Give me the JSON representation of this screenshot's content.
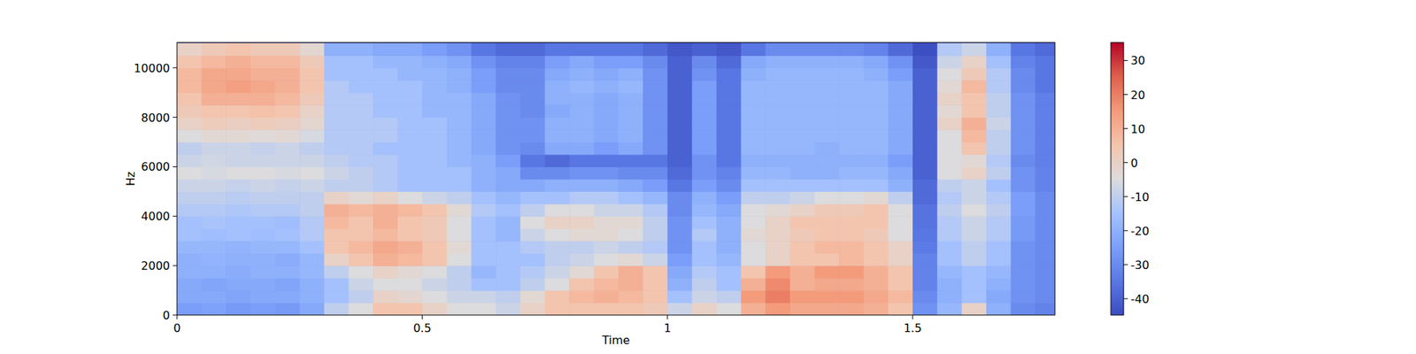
{
  "chart_data": {
    "type": "heatmap",
    "x_label": "Time",
    "y_label": "Hz",
    "xlim": [
      0,
      1.79
    ],
    "ylim": [
      0,
      11025
    ],
    "xticks": [
      0,
      0.5,
      1,
      1.5
    ],
    "yticks": [
      0,
      2000,
      4000,
      6000,
      8000,
      10000
    ],
    "x": [
      0.025,
      0.075,
      0.125,
      0.175,
      0.225,
      0.275,
      0.325,
      0.375,
      0.425,
      0.475,
      0.525,
      0.575,
      0.625,
      0.675,
      0.725,
      0.775,
      0.825,
      0.875,
      0.925,
      0.975,
      1.025,
      1.075,
      1.125,
      1.175,
      1.225,
      1.275,
      1.325,
      1.375,
      1.425,
      1.475,
      1.525,
      1.575,
      1.625,
      1.675,
      1.725,
      1.775
    ],
    "y": [
      250,
      750,
      1250,
      1750,
      2250,
      2750,
      3250,
      3750,
      4250,
      4750,
      5250,
      5750,
      6250,
      6750,
      7250,
      7750,
      8250,
      8750,
      9250,
      9750,
      10250,
      10750
    ],
    "cells": [
      [
        -25,
        -24,
        -26,
        -25,
        -26,
        -22,
        -10,
        -5,
        5,
        5,
        0,
        -5,
        -5,
        -8,
        0,
        5,
        5,
        5,
        5,
        3,
        -8,
        0,
        -5,
        10,
        15,
        12,
        12,
        12,
        10,
        5,
        -28,
        -18,
        0,
        -20,
        -30,
        -32
      ],
      [
        -22,
        -22,
        -23,
        -22,
        -22,
        -20,
        -15,
        -10,
        0,
        -2,
        -5,
        -8,
        -8,
        -10,
        -3,
        5,
        8,
        10,
        8,
        5,
        -15,
        -8,
        -10,
        15,
        20,
        15,
        15,
        15,
        12,
        8,
        -30,
        -20,
        -15,
        -22,
        -28,
        -30
      ],
      [
        -22,
        -23,
        -22,
        -22,
        -23,
        -20,
        -15,
        -8,
        -5,
        -5,
        -8,
        -10,
        -15,
        -15,
        -10,
        -5,
        5,
        8,
        10,
        5,
        -20,
        -10,
        -15,
        10,
        18,
        10,
        12,
        12,
        10,
        5,
        -32,
        -20,
        -15,
        -20,
        -28,
        -30
      ],
      [
        -20,
        -20,
        -21,
        -20,
        -20,
        -18,
        -10,
        -5,
        0,
        -3,
        -5,
        -10,
        -18,
        -15,
        -12,
        -8,
        -3,
        5,
        10,
        5,
        -22,
        -12,
        -15,
        5,
        15,
        10,
        15,
        15,
        10,
        5,
        -32,
        -18,
        -15,
        -18,
        -28,
        -30
      ],
      [
        -20,
        -19,
        -20,
        -20,
        -21,
        -18,
        0,
        5,
        10,
        8,
        5,
        -5,
        -15,
        -15,
        -15,
        -10,
        -8,
        -5,
        -3,
        -8,
        -25,
        -15,
        -18,
        -5,
        0,
        5,
        5,
        8,
        5,
        0,
        -32,
        -15,
        -10,
        -15,
        -28,
        -30
      ],
      [
        -18,
        -18,
        -19,
        -18,
        -18,
        -15,
        5,
        8,
        12,
        10,
        5,
        -3,
        -15,
        -15,
        -12,
        -10,
        -10,
        -8,
        -10,
        -12,
        -28,
        -15,
        -20,
        -5,
        0,
        5,
        8,
        8,
        5,
        0,
        -34,
        -15,
        -10,
        -15,
        -28,
        -30
      ],
      [
        -15,
        -16,
        -15,
        -16,
        -15,
        -12,
        5,
        5,
        8,
        5,
        3,
        -5,
        -15,
        -18,
        -8,
        -5,
        -3,
        -3,
        -5,
        -10,
        -28,
        -12,
        -20,
        -3,
        0,
        3,
        5,
        5,
        3,
        -5,
        -35,
        -12,
        -8,
        -12,
        -26,
        -30
      ],
      [
        -15,
        -14,
        -15,
        -15,
        -16,
        -12,
        8,
        5,
        10,
        5,
        3,
        -5,
        -15,
        -18,
        -5,
        0,
        0,
        -3,
        -3,
        -10,
        -28,
        -15,
        -20,
        -5,
        0,
        5,
        5,
        5,
        5,
        -5,
        -36,
        -12,
        -8,
        -12,
        -26,
        -30
      ],
      [
        -12,
        -12,
        -13,
        -12,
        -12,
        -10,
        10,
        8,
        10,
        8,
        5,
        -3,
        -12,
        -15,
        -10,
        -5,
        -5,
        -8,
        -8,
        -12,
        -30,
        -18,
        -22,
        -5,
        -3,
        0,
        3,
        3,
        5,
        -5,
        -36,
        -10,
        -5,
        -10,
        -25,
        -30
      ],
      [
        -10,
        -10,
        -11,
        -10,
        -10,
        -10,
        0,
        -3,
        0,
        -5,
        -8,
        -10,
        -15,
        -18,
        -15,
        -15,
        -12,
        -12,
        -15,
        -18,
        -30,
        -20,
        -25,
        -10,
        -10,
        -8,
        -5,
        -5,
        -3,
        -10,
        -38,
        -12,
        -8,
        -12,
        -25,
        -30
      ],
      [
        -8,
        -8,
        -9,
        -8,
        -9,
        -8,
        -10,
        -10,
        -12,
        -15,
        -15,
        -15,
        -20,
        -22,
        -22,
        -20,
        -20,
        -20,
        -22,
        -25,
        -35,
        -25,
        -30,
        -15,
        -15,
        -15,
        -15,
        -15,
        -15,
        -20,
        -38,
        -10,
        -8,
        -15,
        -28,
        -32
      ],
      [
        -5,
        -6,
        -5,
        -5,
        -6,
        -5,
        -8,
        -10,
        -12,
        -15,
        -15,
        -15,
        -20,
        -22,
        -30,
        -30,
        -28,
        -28,
        -30,
        -30,
        -38,
        -28,
        -32,
        -18,
        -18,
        -20,
        -20,
        -18,
        -18,
        -22,
        -40,
        -5,
        0,
        -10,
        -28,
        -32
      ],
      [
        -8,
        -7,
        -8,
        -8,
        -8,
        -8,
        -10,
        -12,
        -12,
        -15,
        -15,
        -18,
        -20,
        -25,
        -35,
        -38,
        -35,
        -35,
        -35,
        -35,
        -40,
        -28,
        -35,
        -20,
        -20,
        -20,
        -20,
        -20,
        -20,
        -25,
        -40,
        -5,
        -3,
        -12,
        -30,
        -33
      ],
      [
        -10,
        -8,
        -8,
        -9,
        -8,
        -10,
        -12,
        -12,
        -15,
        -15,
        -15,
        -18,
        -22,
        -28,
        -30,
        -22,
        -22,
        -25,
        -22,
        -28,
        -40,
        -25,
        -35,
        -18,
        -18,
        -18,
        -20,
        -18,
        -18,
        -22,
        -40,
        -5,
        5,
        -10,
        -28,
        -33
      ],
      [
        -5,
        -3,
        -3,
        -4,
        -3,
        -6,
        -12,
        -12,
        -12,
        -15,
        -15,
        -18,
        -22,
        -28,
        -28,
        -20,
        -20,
        -22,
        -20,
        -28,
        -40,
        -25,
        -35,
        -18,
        -18,
        -18,
        -18,
        -18,
        -18,
        -22,
        -40,
        -5,
        8,
        -10,
        -28,
        -33
      ],
      [
        0,
        2,
        1,
        2,
        1,
        -2,
        -12,
        -12,
        -12,
        -15,
        -15,
        -18,
        -22,
        -28,
        -28,
        -20,
        -20,
        -22,
        -20,
        -28,
        -40,
        -25,
        -35,
        -18,
        -18,
        -18,
        -18,
        -18,
        -18,
        -22,
        -40,
        0,
        10,
        -8,
        -28,
        -33
      ],
      [
        3,
        5,
        5,
        6,
        5,
        0,
        -12,
        -12,
        -15,
        -15,
        -18,
        -18,
        -22,
        -28,
        -30,
        -22,
        -20,
        -22,
        -20,
        -28,
        -40,
        -25,
        -35,
        -18,
        -18,
        -18,
        -18,
        -18,
        -18,
        -22,
        -40,
        -3,
        5,
        -10,
        -28,
        -33
      ],
      [
        5,
        10,
        10,
        10,
        8,
        3,
        -12,
        -12,
        -15,
        -15,
        -18,
        -18,
        -22,
        -28,
        -30,
        -20,
        -20,
        -22,
        -20,
        -28,
        -40,
        -25,
        -35,
        -18,
        -18,
        -18,
        -18,
        -18,
        -18,
        -22,
        -40,
        0,
        5,
        -10,
        -28,
        -33
      ],
      [
        8,
        12,
        14,
        12,
        10,
        5,
        -12,
        -15,
        -15,
        -15,
        -18,
        -20,
        -25,
        -30,
        -30,
        -20,
        -18,
        -20,
        -18,
        -28,
        -40,
        -25,
        -35,
        -18,
        -18,
        -18,
        -18,
        -18,
        -18,
        -22,
        -40,
        -3,
        8,
        -12,
        -30,
        -35
      ],
      [
        8,
        12,
        12,
        10,
        10,
        5,
        -15,
        -15,
        -15,
        -18,
        -18,
        -20,
        -25,
        -30,
        -30,
        -22,
        -20,
        -22,
        -20,
        -28,
        -40,
        -28,
        -35,
        -20,
        -18,
        -18,
        -18,
        -18,
        -20,
        -25,
        -40,
        -5,
        3,
        -12,
        -30,
        -35
      ],
      [
        5,
        8,
        10,
        8,
        8,
        3,
        -15,
        -15,
        -18,
        -18,
        -20,
        -22,
        -28,
        -32,
        -32,
        -25,
        -22,
        -25,
        -25,
        -30,
        -40,
        -30,
        -38,
        -22,
        -20,
        -20,
        -20,
        -20,
        -22,
        -28,
        -42,
        -8,
        0,
        -15,
        -32,
        -35
      ],
      [
        0,
        3,
        5,
        3,
        3,
        -2,
        -20,
        -20,
        -22,
        -22,
        -25,
        -28,
        -35,
        -38,
        -38,
        -35,
        -35,
        -35,
        -35,
        -38,
        -42,
        -40,
        -42,
        -35,
        -30,
        -30,
        -30,
        -30,
        -32,
        -38,
        -44,
        -12,
        -8,
        -20,
        -35,
        -38
      ]
    ],
    "colorbar": {
      "lim": [
        -44.8,
        35.3
      ],
      "ticks": [
        -40,
        -30,
        -20,
        -10,
        0,
        10,
        20,
        30
      ]
    }
  }
}
